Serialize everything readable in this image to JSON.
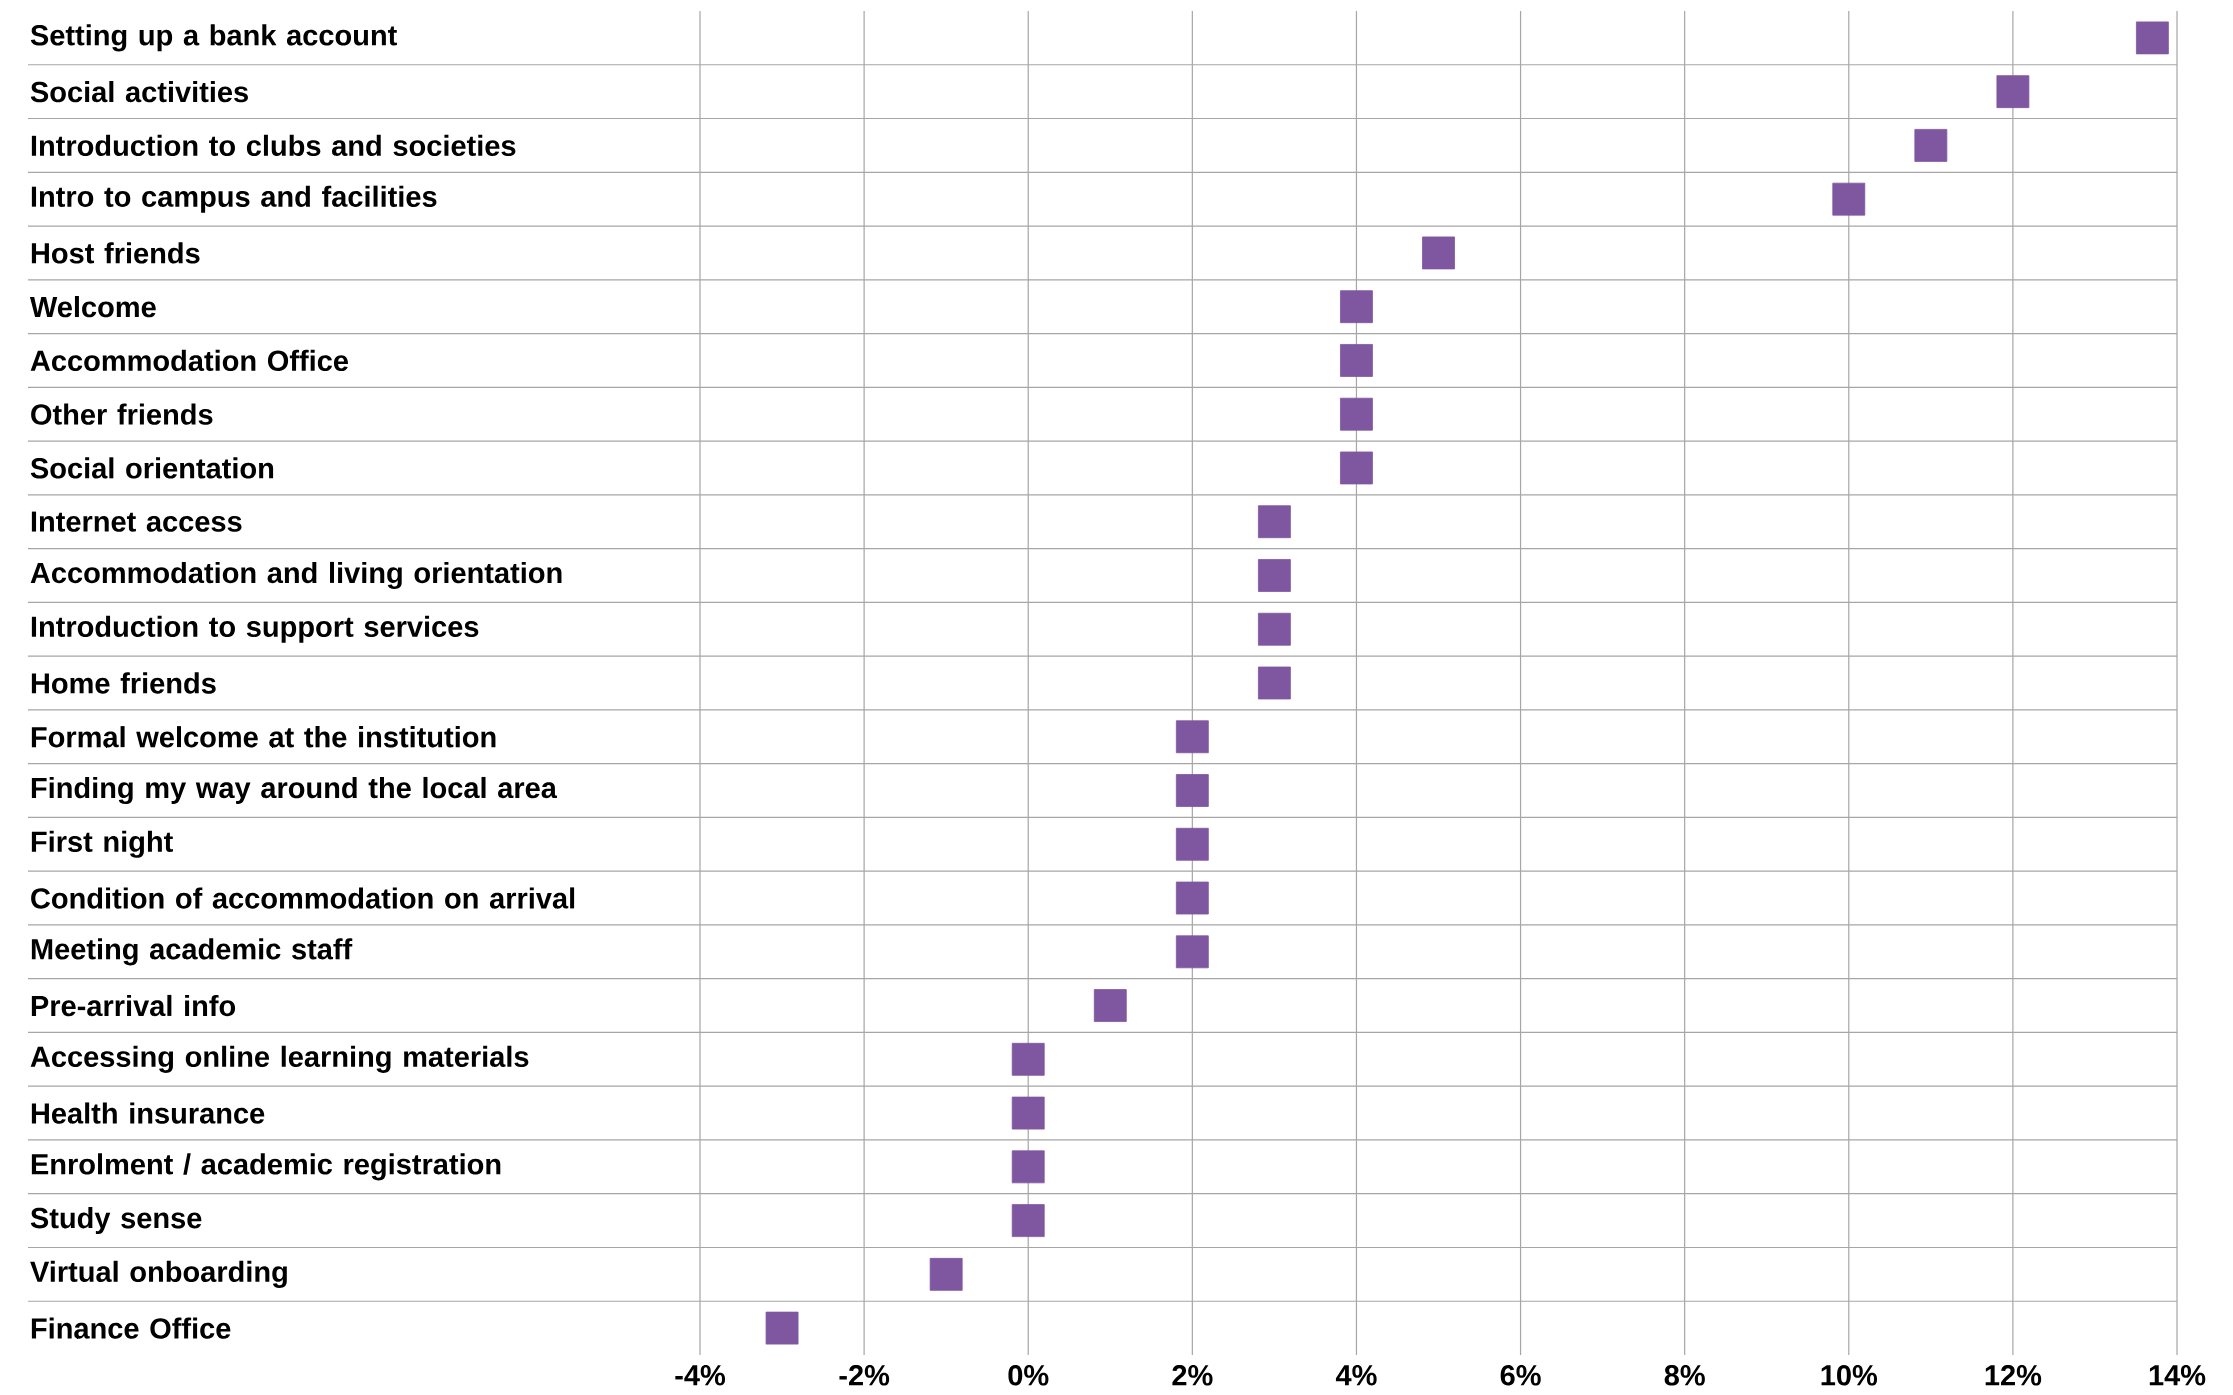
{
  "chart_data": {
    "type": "scatter",
    "orientation": "horizontal",
    "marker": "square",
    "grid": true,
    "color": "#7f57a0",
    "categories": [
      "Setting up a bank account",
      "Social activities",
      "Introduction to clubs and societies",
      "Intro to campus and facilities",
      "Host friends",
      "Welcome",
      "Accommodation Office",
      "Other friends",
      "Social orientation",
      "Internet access",
      "Accommodation and living orientation",
      "Introduction to support services",
      "Home friends",
      "Formal welcome at the institution",
      "Finding my way around the local area",
      "First night",
      "Condition of accommodation on arrival",
      "Meeting academic staff",
      "Pre-arrival info",
      "Accessing online learning materials",
      "Health insurance",
      "Enrolment / academic registration",
      "Study sense",
      "Virtual onboarding",
      "Finance Office"
    ],
    "values": [
      13.7,
      12,
      11,
      10,
      5,
      4,
      4,
      4,
      4,
      3,
      3,
      3,
      3,
      2,
      2,
      2,
      2,
      2,
      1,
      0,
      0,
      0,
      0,
      -1,
      -3
    ],
    "xlim": [
      -4,
      14
    ],
    "xticks": [
      {
        "value": -4,
        "label": "-4%"
      },
      {
        "value": -2,
        "label": "-2%"
      },
      {
        "value": 0,
        "label": "0%"
      },
      {
        "value": 2,
        "label": "2%"
      },
      {
        "value": 4,
        "label": "4%"
      },
      {
        "value": 6,
        "label": "6%"
      },
      {
        "value": 8,
        "label": "8%"
      },
      {
        "value": 10,
        "label": "10%"
      },
      {
        "value": 12,
        "label": "12%"
      },
      {
        "value": 14,
        "label": "14%"
      }
    ]
  }
}
